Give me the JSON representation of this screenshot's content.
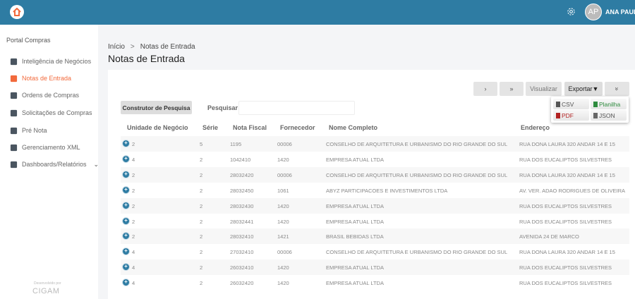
{
  "header": {
    "user_initials": "AP",
    "user_name": "ANA PAULA"
  },
  "sidebar": {
    "title": "Portal Compras",
    "items": [
      {
        "label": "Inteligência de Negócios",
        "icon": "chart-icon"
      },
      {
        "label": "Notas de Entrada",
        "icon": "document-icon",
        "active": true
      },
      {
        "label": "Ordens de Compras",
        "icon": "bag-icon"
      },
      {
        "label": "Solicitações de Compras",
        "icon": "cart-icon"
      },
      {
        "label": "Pré Nota",
        "icon": "note-check-icon"
      },
      {
        "label": "Gerenciamento XML",
        "icon": "users-sync-icon"
      },
      {
        "label": "Dashboards/Relatórios",
        "icon": "dashboard-icon"
      }
    ],
    "footer_dev": "Desenvolvido por",
    "footer_brand": "CIGAM"
  },
  "breadcrumb": {
    "home": "Início",
    "sep": ">",
    "current": "Notas de Entrada"
  },
  "page_title": "Notas de Entrada",
  "toolbar": {
    "next": "›",
    "last": "»",
    "view": "Visualizar",
    "export": "Exportar▼",
    "collapse": "»"
  },
  "export_menu": [
    "CSV",
    "Planilha",
    "PDF",
    "JSON"
  ],
  "search": {
    "builder": "Construtor de Pesquisa",
    "label": "Pesquisar",
    "value": ""
  },
  "table": {
    "columns": [
      "Unidade de Negócio",
      "Série",
      "Nota Fiscal",
      "Fornecedor",
      "Nome Completo",
      "Endereço"
    ],
    "rows": [
      [
        "2",
        "5",
        "1195",
        "00006",
        "CONSELHO DE ARQUITETURA E URBANISMO DO RIO GRANDE DO SUL",
        "RUA DONA LAURA 320 ANDAR 14 E 15"
      ],
      [
        "4",
        "2",
        "1042410",
        "1420",
        "EMPRESA ATUAL LTDA",
        "RUA DOS EUCALIPTOS SILVESTRES"
      ],
      [
        "2",
        "2",
        "28032420",
        "00006",
        "CONSELHO DE ARQUITETURA E URBANISMO DO RIO GRANDE DO SUL",
        "RUA DONA LAURA 320 ANDAR 14 E 15"
      ],
      [
        "2",
        "2",
        "28032450",
        "1061",
        "ABYZ PARTICIPACOES E INVESTIMENTOS LTDA",
        "AV. VER. ADAO RODRIGUES DE OLIVEIRA"
      ],
      [
        "2",
        "2",
        "28032430",
        "1420",
        "EMPRESA ATUAL LTDA",
        "RUA DOS EUCALIPTOS SILVESTRES"
      ],
      [
        "2",
        "2",
        "28032441",
        "1420",
        "EMPRESA ATUAL LTDA",
        "RUA DOS EUCALIPTOS SILVESTRES"
      ],
      [
        "2",
        "2",
        "28032410",
        "1421",
        "BRASIL BEBIDAS LTDA",
        "AVENIDA 24 DE MARCO"
      ],
      [
        "4",
        "2",
        "27032410",
        "00006",
        "CONSELHO DE ARQUITETURA E URBANISMO DO RIO GRANDE DO SUL",
        "RUA DONA LAURA 320 ANDAR 14 E 15"
      ],
      [
        "4",
        "2",
        "26032410",
        "1420",
        "EMPRESA ATUAL LTDA",
        "RUA DOS EUCALIPTOS SILVESTRES"
      ],
      [
        "4",
        "2",
        "26032420",
        "1420",
        "EMPRESA ATUAL LTDA",
        "RUA DOS EUCALIPTOS SILVESTRES"
      ]
    ]
  },
  "colors": {
    "header": "#2e7ca3",
    "accent": "#f26a3c",
    "csv": "#555555",
    "planilha": "#2e8b3e",
    "pdf": "#b22222",
    "json": "#666666"
  }
}
